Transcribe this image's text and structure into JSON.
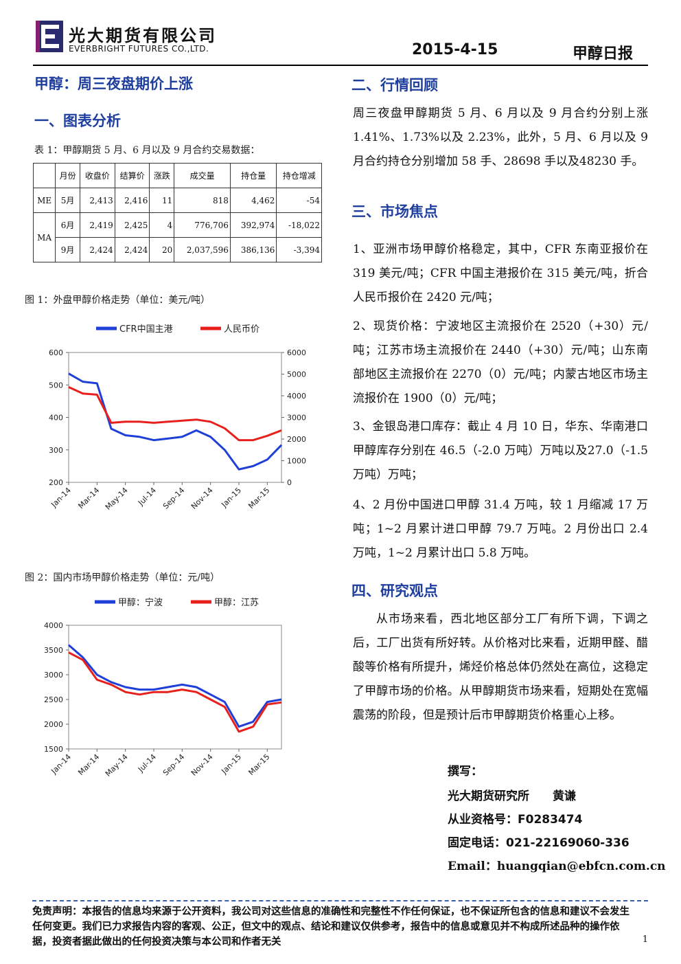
{
  "header": {
    "company_cn": "光大期货有限公司",
    "company_en": "EVERBRIGHT FUTURES CO.,LTD.",
    "date": "2015-4-15",
    "report_name": "甲醇日报"
  },
  "main_title": "甲醇：周三夜盘期价上涨",
  "section1": {
    "heading": "一、图表分析",
    "table_caption": "表 1：甲醇期货 5 月、6 月以及 9 月合约交易数据：",
    "table": {
      "headers": [
        "",
        "月份",
        "收盘价",
        "结算价",
        "涨跌",
        "成交量",
        "持仓量",
        "持仓增减"
      ],
      "groups": [
        {
          "code": "ME",
          "rows": [
            [
              "5月",
              "2,413",
              "2,416",
              "11",
              "818",
              "4,462",
              "-54"
            ]
          ]
        },
        {
          "code": "MA",
          "rows": [
            [
              "6月",
              "2,419",
              "2,425",
              "4",
              "776,706",
              "392,974",
              "-18,022"
            ],
            [
              "9月",
              "2,424",
              "2,424",
              "20",
              "2,037,596",
              "386,136",
              "-3,394"
            ]
          ]
        }
      ]
    },
    "fig1_caption": "图 1：外盘甲醇价格走势（单位：美元/吨）",
    "fig2_caption": "图 2：国内市场甲醇价格走势（单位：元/吨）"
  },
  "chart_data": [
    {
      "type": "line",
      "legend_position": "top",
      "x": [
        "Jan-14",
        "Feb-14",
        "Mar-14",
        "Apr-14",
        "May-14",
        "Jun-14",
        "Jul-14",
        "Aug-14",
        "Sep-14",
        "Oct-14",
        "Nov-14",
        "Dec-14",
        "Jan-15",
        "Feb-15",
        "Mar-15",
        "Apr-15"
      ],
      "x_ticks": [
        "Jan-14",
        "Mar-14",
        "May-14",
        "Jul-14",
        "Sep-14",
        "Nov-14",
        "Jan-15",
        "Mar-15"
      ],
      "series": [
        {
          "name": "CFR中国主港",
          "axis": "left",
          "color": "#1f3fd9",
          "values": [
            535,
            510,
            505,
            365,
            345,
            340,
            330,
            335,
            340,
            360,
            340,
            300,
            240,
            250,
            270,
            315
          ]
        },
        {
          "name": "人民币价",
          "axis": "right",
          "color": "#e8201c",
          "values": [
            4400,
            4100,
            4050,
            2750,
            2800,
            2800,
            2750,
            2800,
            2850,
            2900,
            2800,
            2500,
            1950,
            1950,
            2150,
            2400
          ]
        }
      ],
      "ylim_left": [
        200,
        600
      ],
      "yticks_left": [
        200,
        300,
        400,
        500,
        600
      ],
      "ylim_right": [
        0,
        6000
      ],
      "yticks_right": [
        0,
        1000,
        2000,
        3000,
        4000,
        5000,
        6000
      ]
    },
    {
      "type": "line",
      "legend_position": "top",
      "x": [
        "Jan-14",
        "Feb-14",
        "Mar-14",
        "Apr-14",
        "May-14",
        "Jun-14",
        "Jul-14",
        "Aug-14",
        "Sep-14",
        "Oct-14",
        "Nov-14",
        "Dec-14",
        "Jan-15",
        "Feb-15",
        "Mar-15",
        "Apr-15"
      ],
      "x_ticks": [
        "Jan-14",
        "Mar-14",
        "May-14",
        "Jul-14",
        "Sep-14",
        "Nov-14",
        "Jan-15",
        "Mar-15"
      ],
      "series": [
        {
          "name": "甲醇：宁波",
          "color": "#1f3fd9",
          "values": [
            3600,
            3350,
            3000,
            2850,
            2750,
            2700,
            2700,
            2750,
            2800,
            2750,
            2600,
            2450,
            1950,
            2050,
            2450,
            2500
          ]
        },
        {
          "name": "甲醇：江苏",
          "color": "#e8201c",
          "values": [
            3450,
            3300,
            2900,
            2800,
            2650,
            2600,
            2650,
            2650,
            2700,
            2650,
            2500,
            2350,
            1850,
            1950,
            2400,
            2440
          ]
        }
      ],
      "ylim": [
        1500,
        4000
      ],
      "yticks": [
        1500,
        2000,
        2500,
        3000,
        3500,
        4000
      ]
    }
  ],
  "section2": {
    "heading": "二、行情回顾",
    "text": "周三夜盘甲醇期货 5 月、6 月以及 9 月合约分别上涨 1.41%、1.73%以及 2.23%，此外，5 月、6 月以及 9 月合约持仓分别增加 58 手、28698 手以及48230 手。"
  },
  "section3": {
    "heading": "三、市场焦点",
    "items": [
      "1、亚洲市场甲醇价格稳定，其中，CFR 东南亚报价在 319 美元/吨；CFR 中国主港报价在 315 美元/吨，折合人民币报价在 2420 元/吨；",
      "2、现货价格：宁波地区主流报价在 2520（+30）元/吨；江苏市场主流报价在 2440（+30）元/吨；山东南部地区主流报价在 2270（0）元/吨；内蒙古地区市场主流报价在 1900（0）元/吨；",
      "3、金银岛港口库存：截止 4 月 10 日，华东、华南港口甲醇库存分别在 46.5（-2.0 万吨）万吨以及27.0（-1.5 万吨）万吨；",
      "4、2 月份中国进口甲醇 31.4 万吨，较 1 月缩减 17 万吨；1~2 月累计进口甲醇 79.7 万吨。2 月份出口 2.4 万吨，1~2 月累计出口 5.8 万吨。"
    ]
  },
  "section4": {
    "heading": "四、研究观点",
    "text": "从市场来看，西北地区部分工厂有所下调，下调之后，工厂出货有所好转。从价格对比来看，近期甲醛、醋酸等价格有所提升，烯烃价格总体仍然处在高位，这稳定了甲醇市场的价格。从甲醇期货市场来看，短期处在宽幅震荡的阶段，但是预计后市甲醇期货价格重心上移。"
  },
  "author": {
    "label": "撰写：",
    "name": "光大期货研究所　　黄谦",
    "license": "从业资格号：F0283474",
    "phone": "固定电话：021-22169060-336",
    "email": "Email：huangqian@ebfcn.com.cn"
  },
  "disclaimer": "免责声明：本报告的信息均来源于公开资料，我公司对这些信息的准确性和完整性不作任何保证，也不保证所包含的信息和建议不会发生任何变更。我们已力求报告内容的客观、公正，但文中的观点、结论和建议仅供参考，报告中的信息或意见并不构成所述品种的操作依据，投资者据此做出的任何投资决策与本公司和作者无关",
  "page_number": "1"
}
